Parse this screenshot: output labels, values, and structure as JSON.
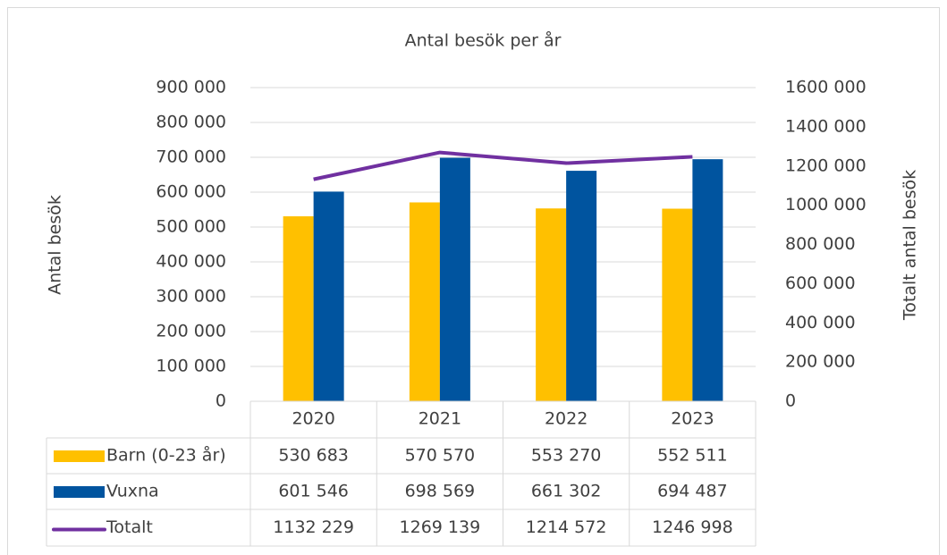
{
  "chart_data": {
    "type": "bar",
    "title": "Antal besök per år",
    "y_label": "Antal besök",
    "y2_label": "Totalt antal besök",
    "categories": [
      "2020",
      "2021",
      "2022",
      "2023"
    ],
    "series": [
      {
        "name": "Barn (0-23 år)",
        "type": "bar",
        "color": "#ffc000",
        "values": [
          530683,
          570570,
          553270,
          552511
        ],
        "value_labels": [
          "530 683",
          "570 570",
          "553 270",
          "552 511"
        ]
      },
      {
        "name": "Vuxna",
        "type": "bar",
        "color": "#00549f",
        "values": [
          601546,
          698569,
          661302,
          694487
        ],
        "value_labels": [
          "601 546",
          "698 569",
          "661 302",
          "694 487"
        ]
      },
      {
        "name": "Totalt",
        "type": "line",
        "axis": "y2",
        "color": "#7030a0",
        "values": [
          1132229,
          1269139,
          1214572,
          1246998
        ],
        "value_labels": [
          "1132 229",
          "1269 139",
          "1214 572",
          "1246 998"
        ]
      }
    ],
    "ylim": [
      0,
      900000
    ],
    "yticks": [
      0,
      {
        "value": 100000,
        "label": "100 000"
      },
      {
        "value": 200000,
        "label": "200 000"
      },
      {
        "value": 300000,
        "label": "300 000"
      },
      {
        "value": 400000,
        "label": "400 000"
      },
      {
        "value": 500000,
        "label": "500 000"
      },
      {
        "value": 600000,
        "label": "600 000"
      },
      {
        "value": 700000,
        "label": "700 000"
      },
      {
        "value": 800000,
        "label": "800 000"
      },
      {
        "value": 900000,
        "label": "900 000"
      }
    ],
    "y2lim": [
      0,
      1600000
    ],
    "y2ticks": [
      0,
      {
        "value": 200000,
        "label": "200 000"
      },
      {
        "value": 400000,
        "label": "400 000"
      },
      {
        "value": 600000,
        "label": "600 000"
      },
      {
        "value": 800000,
        "label": "800 000"
      },
      {
        "value": 1000000,
        "label": "1000 000"
      },
      {
        "value": 1200000,
        "label": "1200 000"
      },
      {
        "value": 1400000,
        "label": "1400 000"
      },
      {
        "value": 1600000,
        "label": "1600 000"
      }
    ],
    "grid": true,
    "data_table": true
  }
}
